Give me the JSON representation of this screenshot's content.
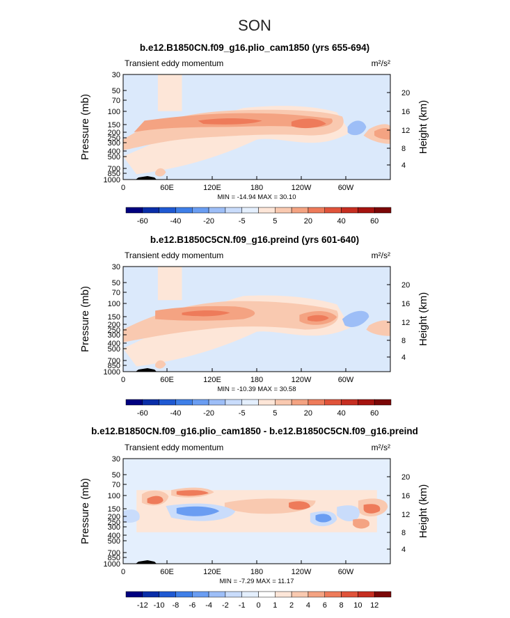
{
  "figure": {
    "title": "SON"
  },
  "chart_data": [
    {
      "type": "heatmap",
      "title": "b.e12.B1850CN.f09_g16.plio_cam1850 (yrs 655-694)",
      "left_label": "Transient eddy momentum",
      "units": "m²/s²",
      "ylabel": "Pressure (mb)",
      "y2label": "Height (km)",
      "x_ticks": [
        "0",
        "60E",
        "120E",
        "180",
        "120W",
        "60W"
      ],
      "y_ticks": [
        "30",
        "50",
        "70",
        "100",
        "150",
        "200",
        "250",
        "300",
        "400",
        "500",
        "700",
        "850",
        "1000"
      ],
      "height_ticks": [
        "20",
        "16",
        "12",
        "8",
        "4"
      ],
      "stats": "MIN = -14.94   MAX =  30.10",
      "min": -14.94,
      "max": 30.1,
      "colorbar_labels": [
        "-60",
        "-40",
        "-20",
        "-5",
        "5",
        "20",
        "40",
        "60"
      ],
      "colorbar_colors": [
        "#00007f",
        "#0a2ea8",
        "#1f59d2",
        "#3f7fe8",
        "#6a9df2",
        "#9dbef7",
        "#c9dcfb",
        "#e4effd",
        "#fde6d8",
        "#f9c9b0",
        "#f4a382",
        "#ee7b5a",
        "#e0533a",
        "#c62e21",
        "#a5130f",
        "#7b0707"
      ]
    },
    {
      "type": "heatmap",
      "title": "b.e12.B1850C5CN.f09_g16.preind (yrs 601-640)",
      "left_label": "Transient eddy momentum",
      "units": "m²/s²",
      "ylabel": "Pressure (mb)",
      "y2label": "Height (km)",
      "x_ticks": [
        "0",
        "60E",
        "120E",
        "180",
        "120W",
        "60W"
      ],
      "y_ticks": [
        "30",
        "50",
        "70",
        "100",
        "150",
        "200",
        "250",
        "300",
        "400",
        "500",
        "700",
        "850",
        "1000"
      ],
      "height_ticks": [
        "20",
        "16",
        "12",
        "8",
        "4"
      ],
      "stats": "MIN = -10.39   MAX =  30.58",
      "min": -10.39,
      "max": 30.58,
      "colorbar_labels": [
        "-60",
        "-40",
        "-20",
        "-5",
        "5",
        "20",
        "40",
        "60"
      ],
      "colorbar_colors": [
        "#00007f",
        "#0a2ea8",
        "#1f59d2",
        "#3f7fe8",
        "#6a9df2",
        "#9dbef7",
        "#c9dcfb",
        "#e4effd",
        "#fde6d8",
        "#f9c9b0",
        "#f4a382",
        "#ee7b5a",
        "#e0533a",
        "#c62e21",
        "#a5130f",
        "#7b0707"
      ]
    },
    {
      "type": "heatmap",
      "title": "b.e12.B1850CN.f09_g16.plio_cam1850 - b.e12.B1850C5CN.f09_g16.preind",
      "left_label": "Transient eddy momentum",
      "units": "m²/s²",
      "ylabel": "Pressure (mb)",
      "y2label": "Height (km)",
      "x_ticks": [
        "0",
        "60E",
        "120E",
        "180",
        "120W",
        "60W"
      ],
      "y_ticks": [
        "30",
        "50",
        "70",
        "100",
        "150",
        "200",
        "250",
        "300",
        "400",
        "500",
        "700",
        "850",
        "1000"
      ],
      "height_ticks": [
        "20",
        "16",
        "12",
        "8",
        "4"
      ],
      "stats": "MIN =  -7.29   MAX =  11.17",
      "min": -7.29,
      "max": 11.17,
      "colorbar_labels": [
        "-12",
        "-10",
        "-8",
        "-6",
        "-4",
        "-2",
        "-1",
        "0",
        "1",
        "2",
        "4",
        "6",
        "8",
        "10",
        "12"
      ],
      "colorbar_colors": [
        "#00007f",
        "#0a2ea8",
        "#1f59d2",
        "#3f7fe8",
        "#6a9df2",
        "#9dbef7",
        "#c9dcfb",
        "#e4effd",
        "#ffffff",
        "#fde6d8",
        "#f9c9b0",
        "#f4a382",
        "#ee7b5a",
        "#e0533a",
        "#c62e21",
        "#7b0707"
      ]
    }
  ]
}
